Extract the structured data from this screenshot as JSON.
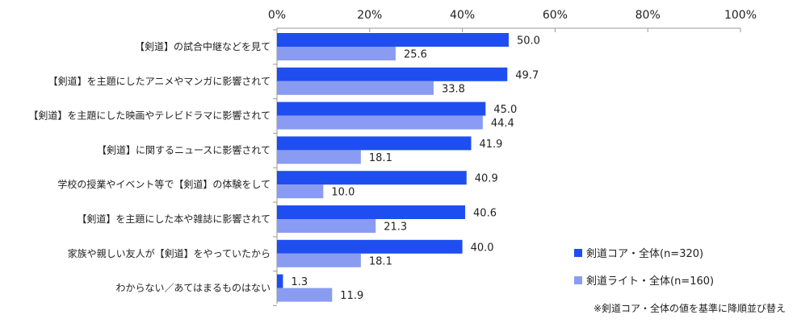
{
  "chart_data": {
    "type": "bar",
    "orientation": "horizontal",
    "categories": [
      "【剣道】の試合中継などを見て",
      "【剣道】を主題にしたアニメやマンガに影響されて",
      "【剣道】を主題にした映画やテレビドラマに影響されて",
      "【剣道】に関するニュースに影響されて",
      "学校の授業やイベント等で【剣道】の体験をして",
      "【剣道】を主題にした本や雑誌に影響されて",
      "家族や親しい友人が【剣道】をやっていたから",
      "わからない／あてはまるものはない"
    ],
    "series": [
      {
        "name": "剣道コア・全体(n=320)",
        "color": "#1f4ef0",
        "values": [
          50.0,
          49.7,
          45.0,
          41.9,
          40.9,
          40.6,
          40.0,
          1.3
        ],
        "labels": [
          "50.0",
          "49.7",
          "45.0",
          "41.9",
          "40.9",
          "40.6",
          "40.0",
          "1.3"
        ]
      },
      {
        "name": "剣道ライト・全体(n=160)",
        "color": "#8a9cf2",
        "values": [
          25.6,
          33.8,
          44.4,
          18.1,
          10.0,
          21.3,
          18.1,
          11.9
        ],
        "labels": [
          "25.6",
          "33.8",
          "44.4",
          "18.1",
          "10.0",
          "21.3",
          "18.1",
          "11.9"
        ]
      }
    ],
    "xlim": [
      0,
      100
    ],
    "x_ticks": [
      "0%",
      "20%",
      "40%",
      "60%",
      "80%",
      "100%"
    ],
    "x_tick_values": [
      0,
      20,
      40,
      60,
      80,
      100
    ],
    "axis_position": "top",
    "grid": false,
    "legend_position": "bottom-right",
    "note": "※剣道コア・全体の値を基準に降順並び替え"
  }
}
